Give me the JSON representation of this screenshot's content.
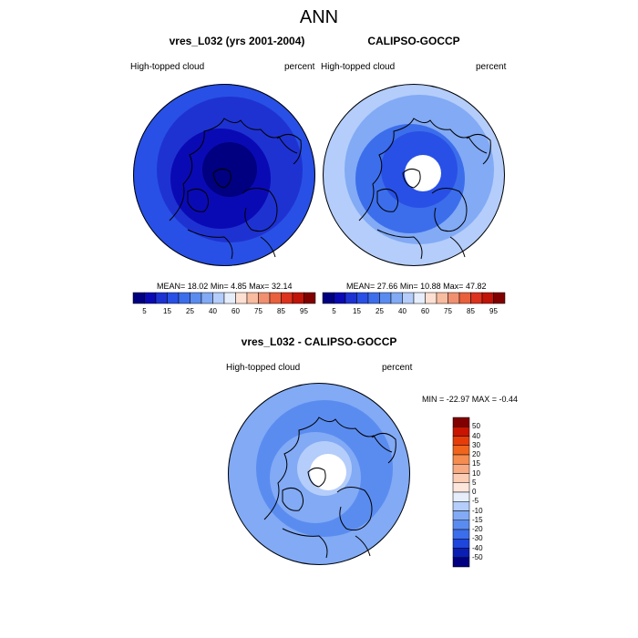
{
  "figure": {
    "title": "ANN"
  },
  "panels": [
    {
      "title": "vres_L032 (yrs 2001-2004)",
      "left_label": "High-topped cloud",
      "right_label": "percent",
      "stats": {
        "mean_label": "MEAN=",
        "mean": "18.02",
        "min_label": "Min=",
        "min": "4.85",
        "max_label": "Max=",
        "max": "32.14"
      }
    },
    {
      "title": "CALIPSO-GOCCP",
      "left_label": "High-topped cloud",
      "right_label": "percent",
      "stats": {
        "mean_label": "MEAN=",
        "mean": "27.66",
        "min_label": "Min=",
        "min": "10.88",
        "max_label": "Max=",
        "max": "47.82"
      }
    },
    {
      "title": "vres_L032 - CALIPSO-GOCCP",
      "left_label": "High-topped cloud",
      "right_label": "percent",
      "stats_line": "MIN = -22.97 MAX =  -0.44"
    }
  ],
  "chart_data": [
    {
      "type": "heatmap",
      "projection": "north polar stereographic",
      "title": "vres_L032 (yrs 2001-2004)",
      "variable": "High-topped cloud",
      "units": "percent",
      "mean": 18.02,
      "min": 4.85,
      "max": 32.14,
      "colorbar_ticks": [
        "5",
        "15",
        "25",
        "40",
        "60",
        "75",
        "85",
        "95"
      ],
      "colorbar_levels": [
        5,
        10,
        15,
        20,
        25,
        30,
        40,
        50,
        60,
        70,
        75,
        80,
        85,
        90,
        95
      ],
      "colorbar_colors": [
        "#000080",
        "#0a0ab4",
        "#1e32d2",
        "#2850e6",
        "#3c6eeb",
        "#5a8cf0",
        "#82aaf5",
        "#b4cdfa",
        "#e6eefc",
        "#fde0d2",
        "#f8bca0",
        "#f09070",
        "#e8603c",
        "#dc321e",
        "#c01408",
        "#800000"
      ],
      "field_rings": [
        {
          "radius_frac": 1.0,
          "value": 22.5,
          "color": "#2850e6"
        },
        {
          "radius_frac": 0.8,
          "value": 17.5,
          "color": "#1e32d2"
        },
        {
          "radius_frac": 0.55,
          "value": 12.5,
          "color": "#0a0ab4"
        },
        {
          "radius_frac": 0.3,
          "value": 7.5,
          "color": "#000080"
        }
      ]
    },
    {
      "type": "heatmap",
      "projection": "north polar stereographic",
      "title": "CALIPSO-GOCCP",
      "variable": "High-topped cloud",
      "units": "percent",
      "mean": 27.66,
      "min": 10.88,
      "max": 47.82,
      "colorbar_ticks": [
        "5",
        "15",
        "25",
        "40",
        "60",
        "75",
        "85",
        "95"
      ],
      "colorbar_levels": [
        5,
        10,
        15,
        20,
        25,
        30,
        40,
        50,
        60,
        70,
        75,
        80,
        85,
        90,
        95
      ],
      "colorbar_colors": [
        "#000080",
        "#0a0ab4",
        "#1e32d2",
        "#2850e6",
        "#3c6eeb",
        "#5a8cf0",
        "#82aaf5",
        "#b4cdfa",
        "#e6eefc",
        "#fde0d2",
        "#f8bca0",
        "#f09070",
        "#e8603c",
        "#dc321e",
        "#c01408",
        "#800000"
      ],
      "field_rings": [
        {
          "radius_frac": 1.0,
          "value": 35,
          "color": "#b4cdfa"
        },
        {
          "radius_frac": 0.82,
          "value": 27.5,
          "color": "#82aaf5"
        },
        {
          "radius_frac": 0.6,
          "value": 22.5,
          "color": "#3c6eeb"
        },
        {
          "radius_frac": 0.42,
          "value": 17.5,
          "color": "#2850e6"
        }
      ],
      "missing_data": "polar gap near the pole (white)"
    },
    {
      "type": "heatmap",
      "projection": "north polar stereographic",
      "title": "vres_L032 - CALIPSO-GOCCP",
      "variable": "High-topped cloud",
      "units": "percent",
      "min": -22.97,
      "max": -0.44,
      "colorbar_ticks": [
        "50",
        "40",
        "30",
        "20",
        "15",
        "10",
        "5",
        "0",
        "-5",
        "-10",
        "-15",
        "-20",
        "-30",
        "-40",
        "-50"
      ],
      "colorbar_levels": [
        50,
        40,
        30,
        20,
        15,
        10,
        5,
        0,
        -5,
        -10,
        -15,
        -20,
        -30,
        -40,
        -50
      ],
      "colorbar_colors": [
        "#800000",
        "#c81400",
        "#e63c0a",
        "#f0641e",
        "#f58c50",
        "#f8aa82",
        "#fbcdb4",
        "#fde6dc",
        "#e6eefc",
        "#b4cdfa",
        "#82aaf5",
        "#5a8cf0",
        "#3c6eeb",
        "#1e46dc",
        "#0a1eb4",
        "#000080"
      ],
      "field_rings": [
        {
          "radius_frac": 1.0,
          "value": -7.5,
          "color": "#82aaf5"
        },
        {
          "radius_frac": 0.75,
          "value": -12.5,
          "color": "#5a8cf0"
        },
        {
          "radius_frac": 0.5,
          "value": -7.5,
          "color": "#82aaf5"
        },
        {
          "radius_frac": 0.3,
          "value": -2.5,
          "color": "#b4cdfa"
        }
      ],
      "missing_data": "polar gap near the pole (white)"
    }
  ]
}
